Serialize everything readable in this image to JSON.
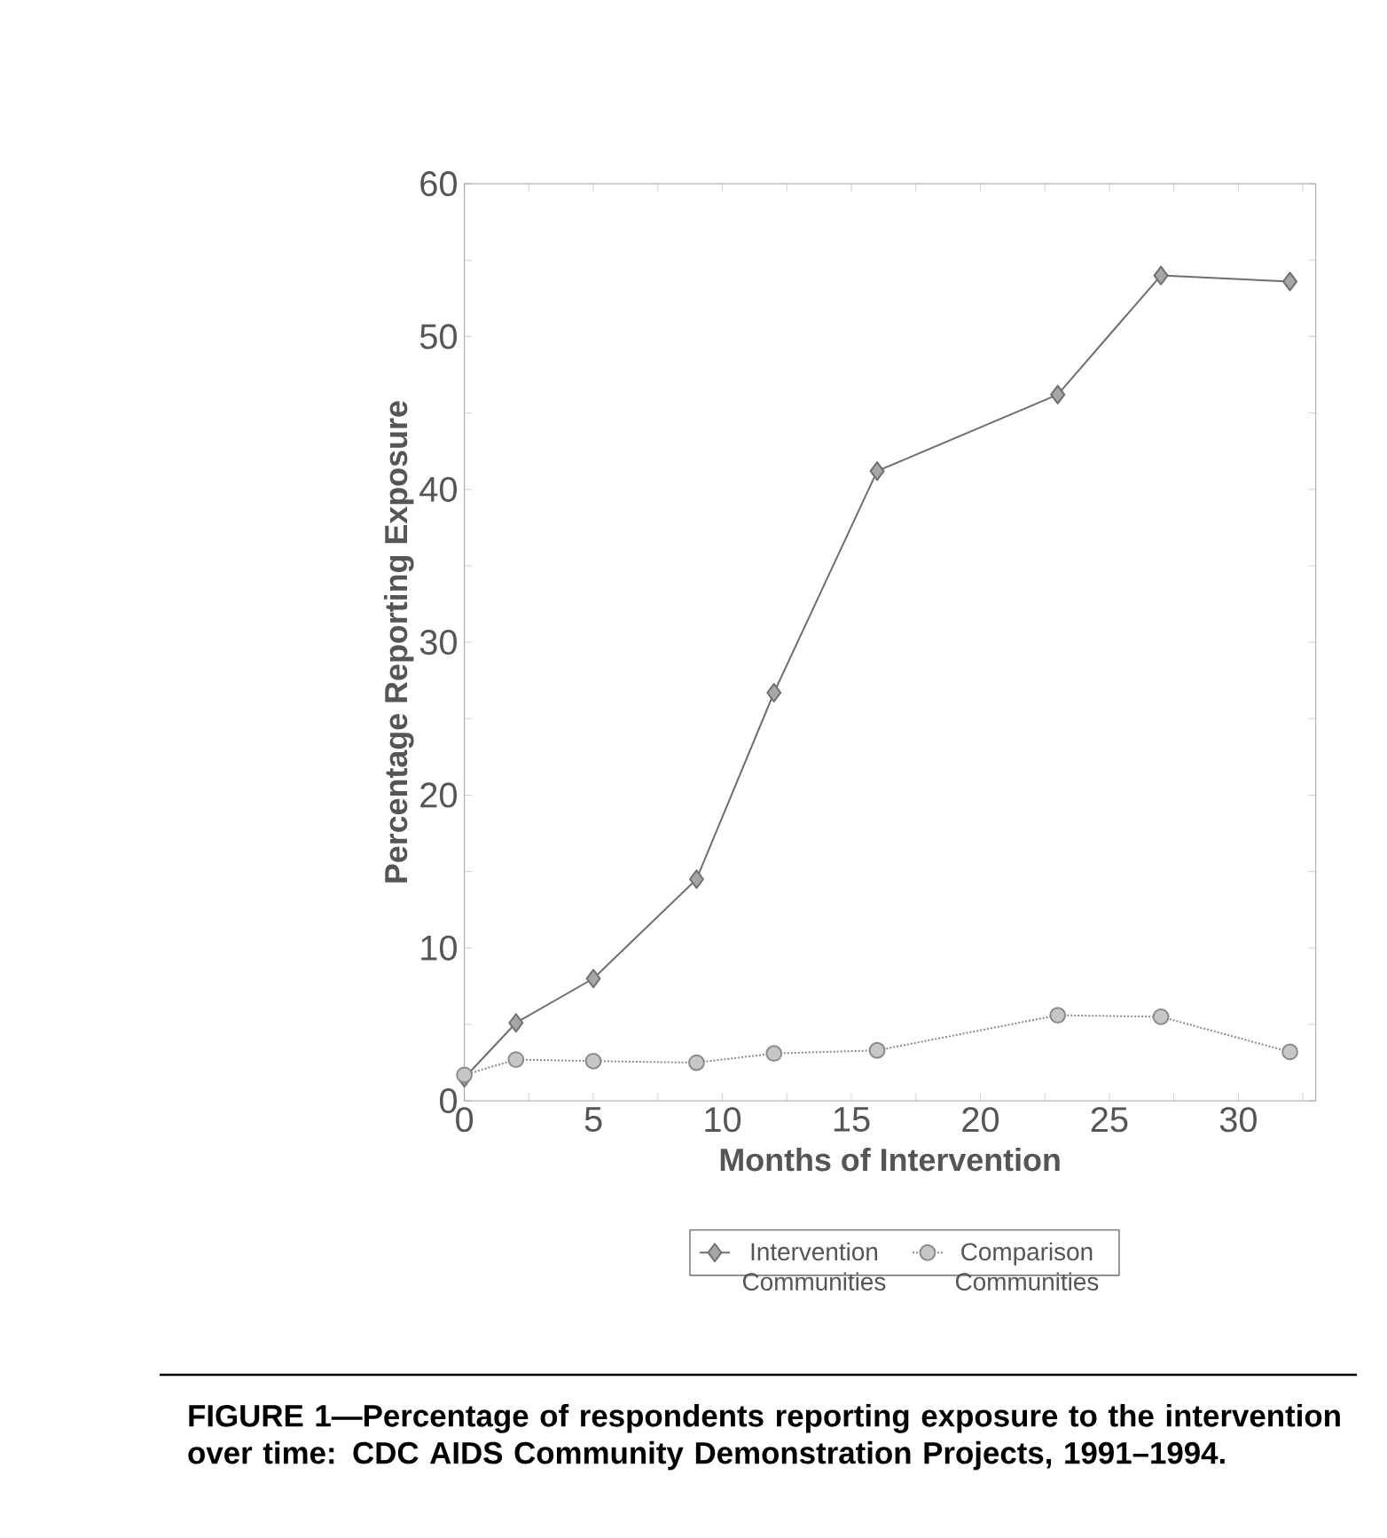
{
  "chart_data": {
    "type": "line",
    "xlabel": "Months of Intervention",
    "ylabel": "Percentage Reporting Exposure",
    "annotations": [
      "**FIGURE 1—Percentage of respondents reporting exposure to the intervention over time: CDC AIDS Community Demonstration Projects, 1991–1994.**"
    ],
    "xlim": [
      0,
      33
    ],
    "ylim": [
      0,
      60
    ],
    "xticks": [
      0,
      {
        "value": 2.5,
        "label": null
      },
      5,
      {
        "value": 7.5,
        "label": null
      },
      10,
      {
        "value": 12.5,
        "label": null
      },
      15,
      {
        "value": 17.5,
        "label": null
      },
      20,
      {
        "value": 22.5,
        "label": null
      },
      25,
      {
        "value": 27.5,
        "label": null
      },
      30,
      {
        "value": 32.5,
        "label": null
      }
    ],
    "yticks": [
      0,
      {
        "value": 5,
        "label": null
      },
      10,
      {
        "value": 15,
        "label": null
      },
      20,
      {
        "value": 25,
        "label": null
      },
      30,
      {
        "value": 35,
        "label": null
      },
      40,
      {
        "value": 45,
        "label": null
      },
      50,
      {
        "value": 55,
        "label": null
      },
      60
    ],
    "grid": false,
    "legend": "bottom",
    "series": [
      {
        "name": "Intervention Communities",
        "color": "#6e6e6e",
        "marker": "diamond",
        "line_style": "solid",
        "x": [
          0,
          2,
          5,
          9,
          12,
          16,
          23,
          27,
          32
        ],
        "values": [
          1.5,
          5.1,
          8.0,
          14.5,
          26.7,
          41.2,
          46.2,
          54.0,
          53.6
        ]
      },
      {
        "name": "Comparison Communities",
        "color": "#8a8a8a",
        "marker": "circle",
        "line_style": "dotted",
        "x": [
          0,
          2,
          5,
          9,
          12,
          16,
          23,
          27,
          32
        ],
        "values": [
          1.7,
          2.7,
          2.6,
          2.5,
          3.1,
          3.3,
          5.6,
          5.5,
          3.2
        ]
      }
    ]
  }
}
